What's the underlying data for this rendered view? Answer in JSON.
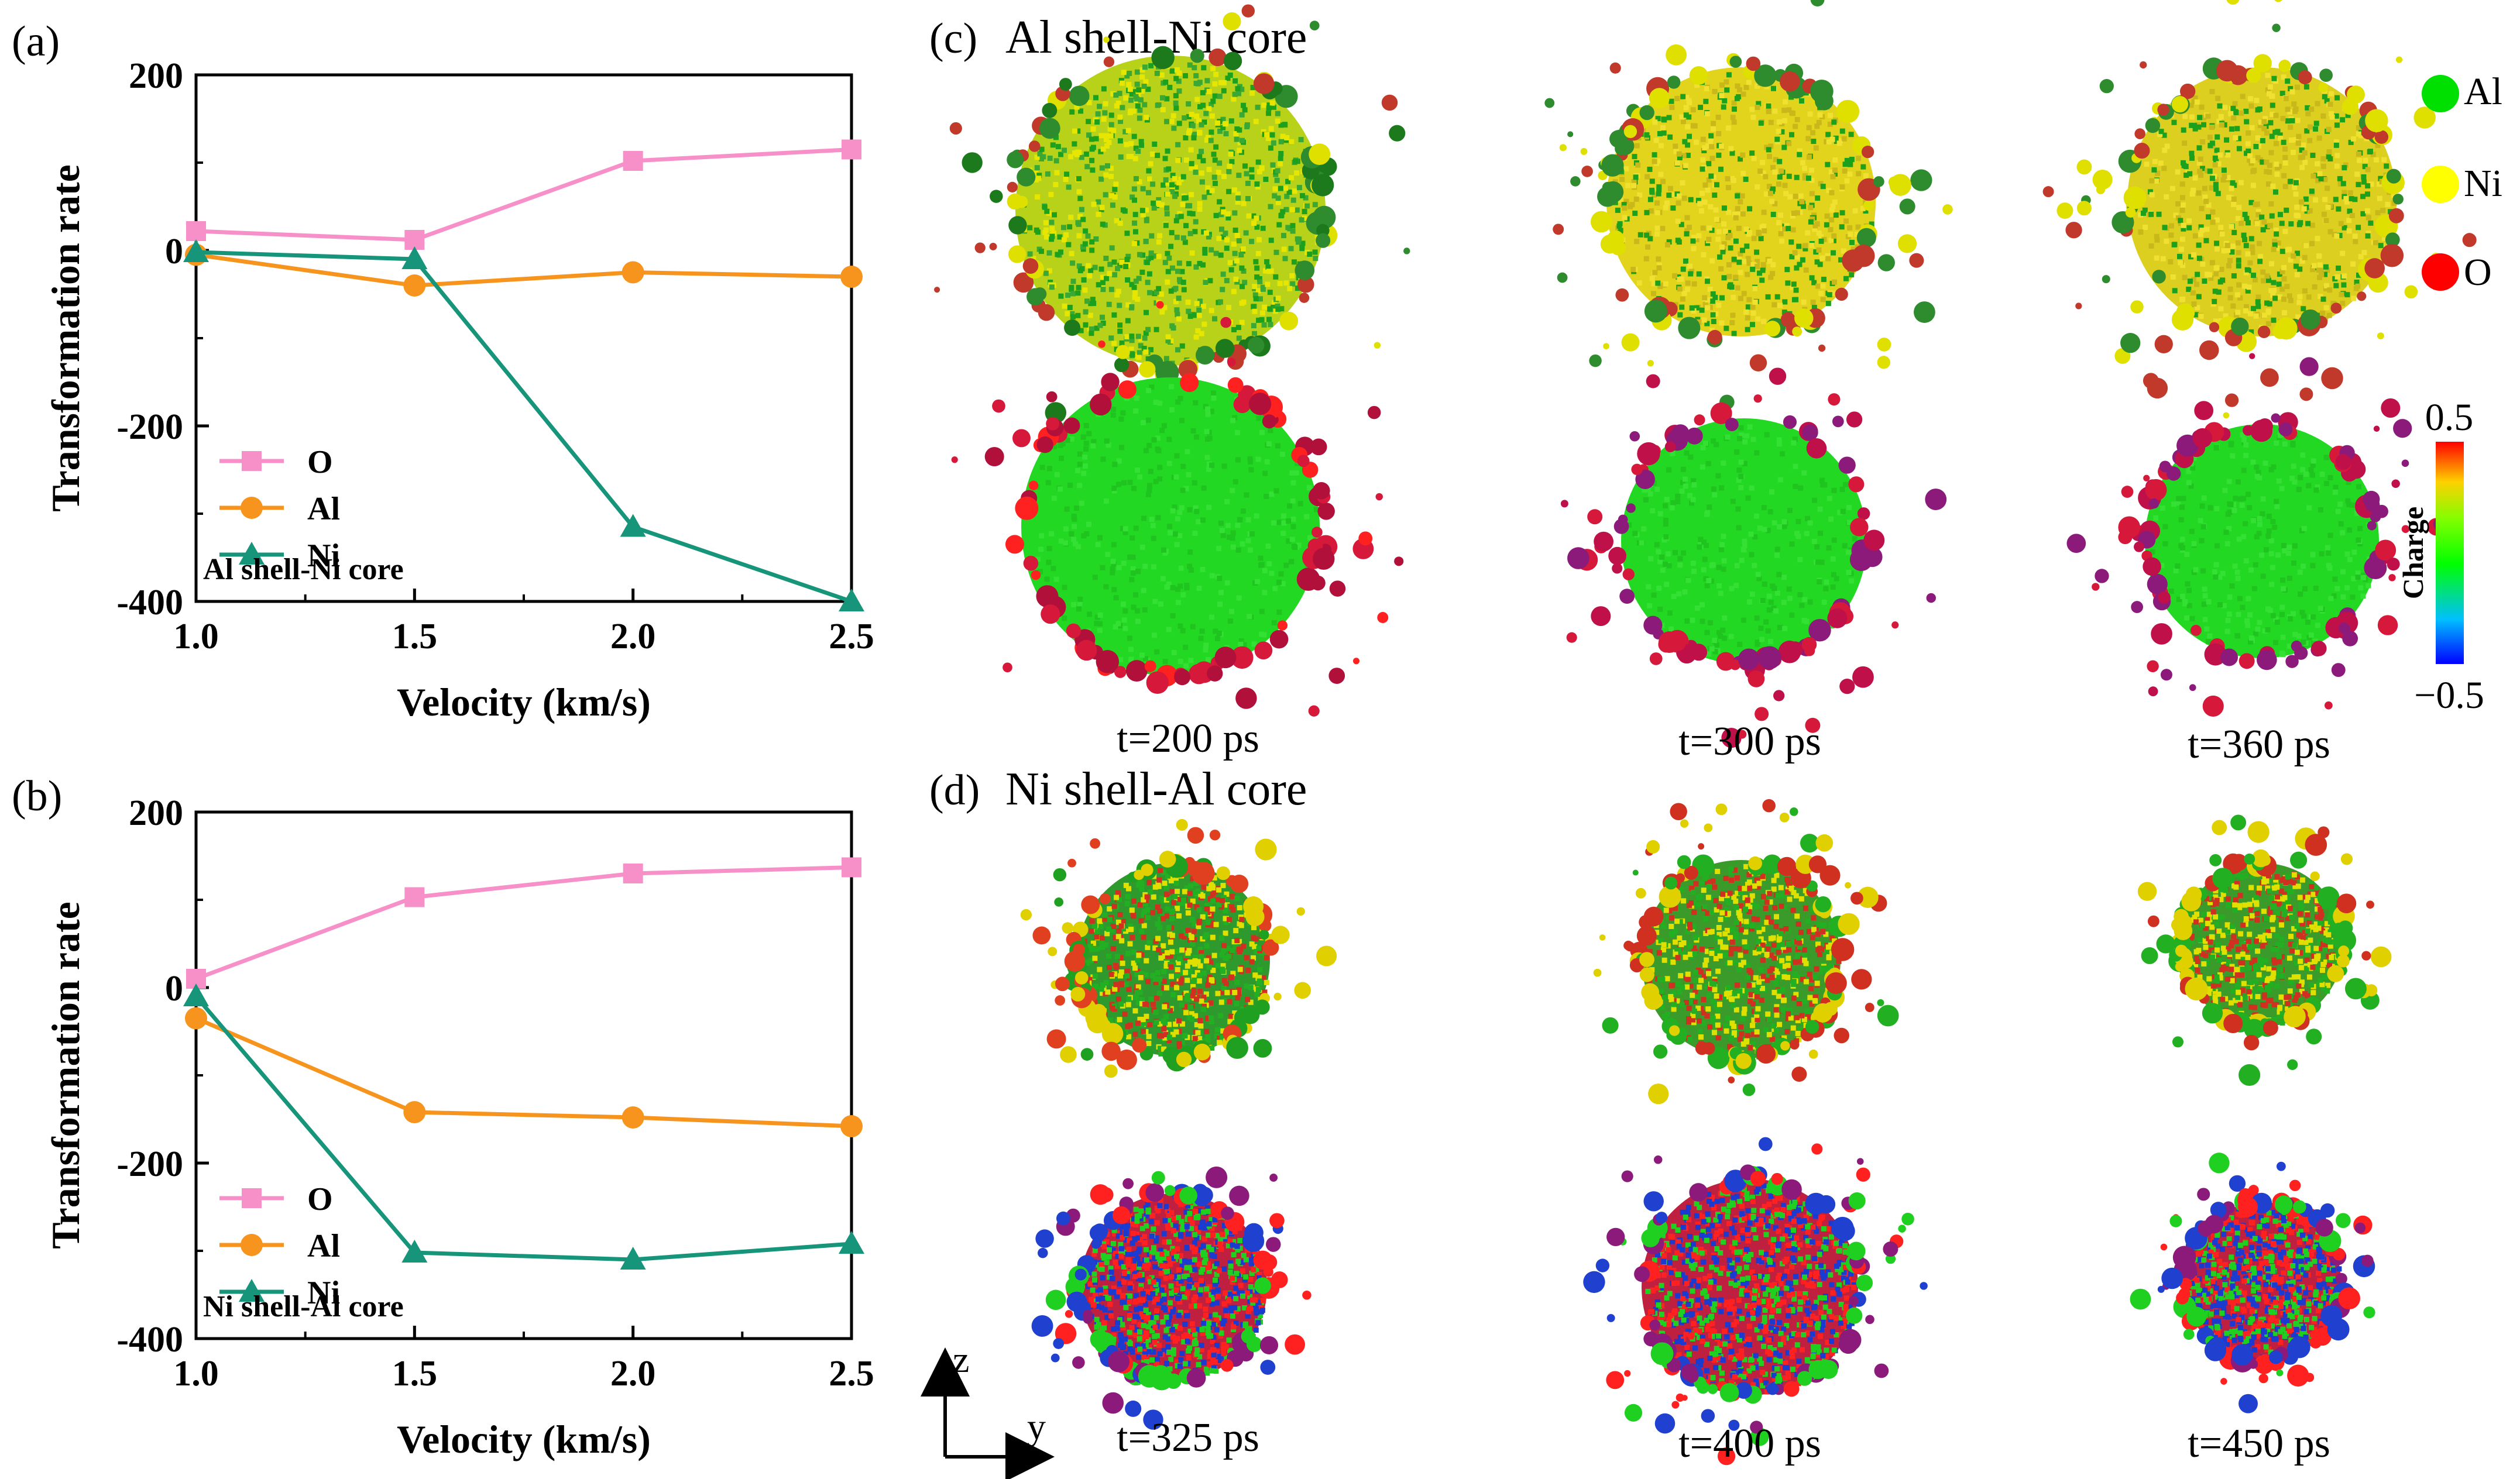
{
  "panels": {
    "a": {
      "letter": "(a)"
    },
    "b": {
      "letter": "(b)"
    },
    "c": {
      "letter": "(c)",
      "title": "Al shell-Ni core",
      "times": [
        "t=200 ps",
        "t=300 ps",
        "t=360 ps"
      ]
    },
    "d": {
      "letter": "(d)",
      "title": "Ni shell-Al core",
      "times": [
        "t=325 ps",
        "t=400 ps",
        "t=450 ps"
      ]
    }
  },
  "atom_legend": [
    {
      "label": "Al",
      "color": "#00e000"
    },
    {
      "label": "Ni",
      "color": "#ffff00"
    },
    {
      "label": "O",
      "color": "#ff0000"
    }
  ],
  "colorbar": {
    "title": "Charge",
    "max_label": "0.5",
    "min_label": "−0.5"
  },
  "axes_labels": {
    "z": "z",
    "y": "y"
  },
  "colors": {
    "O": "#f78fc8",
    "Al": "#f7941d",
    "Ni": "#17957a"
  },
  "chart_data": [
    {
      "type": "line",
      "panel": "a",
      "xlabel": "Velocity (km/s)",
      "ylabel": "Transformation rate",
      "xlim": [
        1.0,
        2.5
      ],
      "ylim": [
        -400,
        200
      ],
      "xticks": [
        "1.0",
        "1.5",
        "2.0",
        "2.5"
      ],
      "yticks": [
        "200",
        "0",
        "-200",
        "-400"
      ],
      "annotation": "Al shell-Ni core",
      "x": [
        1.0,
        1.5,
        2.0,
        2.5
      ],
      "series": [
        {
          "name": "O",
          "marker": "square",
          "values": [
            22,
            12,
            102,
            115
          ]
        },
        {
          "name": "Al",
          "marker": "circle",
          "values": [
            -5,
            -40,
            -25,
            -30
          ]
        },
        {
          "name": "Ni",
          "marker": "triangle",
          "values": [
            -2,
            -10,
            -315,
            -400
          ]
        }
      ]
    },
    {
      "type": "line",
      "panel": "b",
      "xlabel": "Velocity (km/s)",
      "ylabel": "Transformation rate",
      "xlim": [
        1.0,
        2.5
      ],
      "ylim": [
        -400,
        200
      ],
      "xticks": [
        "1.0",
        "1.5",
        "2.0",
        "2.5"
      ],
      "yticks": [
        "200",
        "0",
        "-200",
        "-400"
      ],
      "annotation": "Ni shell-Al core",
      "x": [
        1.0,
        1.5,
        2.0,
        2.5
      ],
      "series": [
        {
          "name": "O",
          "marker": "square",
          "values": [
            10,
            103,
            130,
            137
          ]
        },
        {
          "name": "Al",
          "marker": "circle",
          "values": [
            -35,
            -142,
            -148,
            -158
          ]
        },
        {
          "name": "Ni",
          "marker": "triangle",
          "values": [
            -10,
            -302,
            -310,
            -292
          ]
        }
      ]
    }
  ]
}
